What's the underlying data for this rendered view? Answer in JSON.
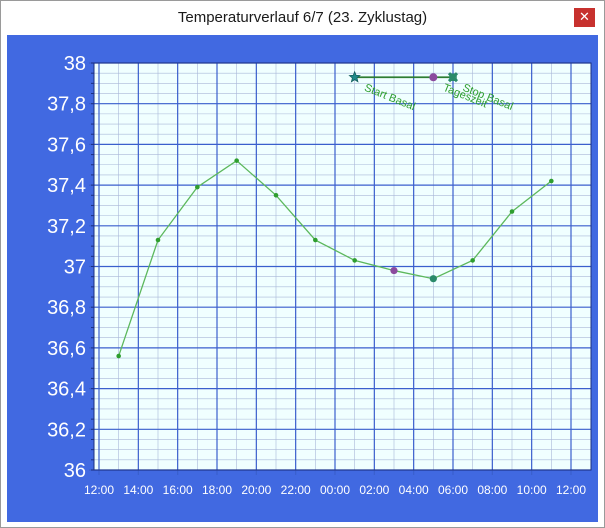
{
  "window": {
    "title": "Temperaturverlauf 6/7 (23. Zyklustag)",
    "close_label": "✕"
  },
  "colors": {
    "frame": "#4169e1",
    "plot_bg": "#f0ffff",
    "grid_major": "#3a5fcd",
    "grid_minor": "#a9b8d8",
    "line": "#5cb85c",
    "point": "#2e9e2e",
    "marker_purple": "#8b4a9e",
    "marker_green": "#2a8a6a",
    "marker_bar": "#2e7d32",
    "annotation": "#2e9e2e",
    "close_bg": "#c7312e"
  },
  "chart_data": {
    "type": "line",
    "title": "",
    "xlabel": "",
    "ylabel": "",
    "ylim": [
      36,
      38
    ],
    "y_ticks": [
      "36",
      "36,2",
      "36,4",
      "36,6",
      "36,8",
      "37",
      "37,2",
      "37,4",
      "37,6",
      "37,8",
      "38"
    ],
    "x_ticks": [
      "12:00",
      "14:00",
      "16:00",
      "18:00",
      "20:00",
      "22:00",
      "00:00",
      "02:00",
      "04:00",
      "06:00",
      "08:00",
      "10:00",
      "12:00"
    ],
    "grid": true,
    "series": [
      {
        "x": [
          "13:00",
          "15:00",
          "17:00",
          "19:00",
          "21:00",
          "23:00",
          "01:00",
          "03:00",
          "05:00",
          "07:00",
          "09:00",
          "11:00"
        ],
        "y": [
          36.56,
          37.13,
          37.39,
          37.52,
          37.35,
          37.13,
          37.03,
          36.98,
          36.94,
          37.03,
          37.27,
          37.42
        ]
      }
    ],
    "highlighted_points": [
      {
        "x": "03:00",
        "y": 36.98,
        "color": "marker_purple"
      },
      {
        "x": "05:00",
        "y": 36.94,
        "color": "marker_green"
      }
    ],
    "markers": [
      {
        "label": "Start Basal",
        "x": "01:00",
        "symbol": "star"
      },
      {
        "label": "Tageszeit",
        "x": "05:00",
        "symbol": "circle"
      },
      {
        "label": "Stop Basal",
        "x": "06:00",
        "symbol": "cross"
      }
    ],
    "marker_level": 37.93
  }
}
